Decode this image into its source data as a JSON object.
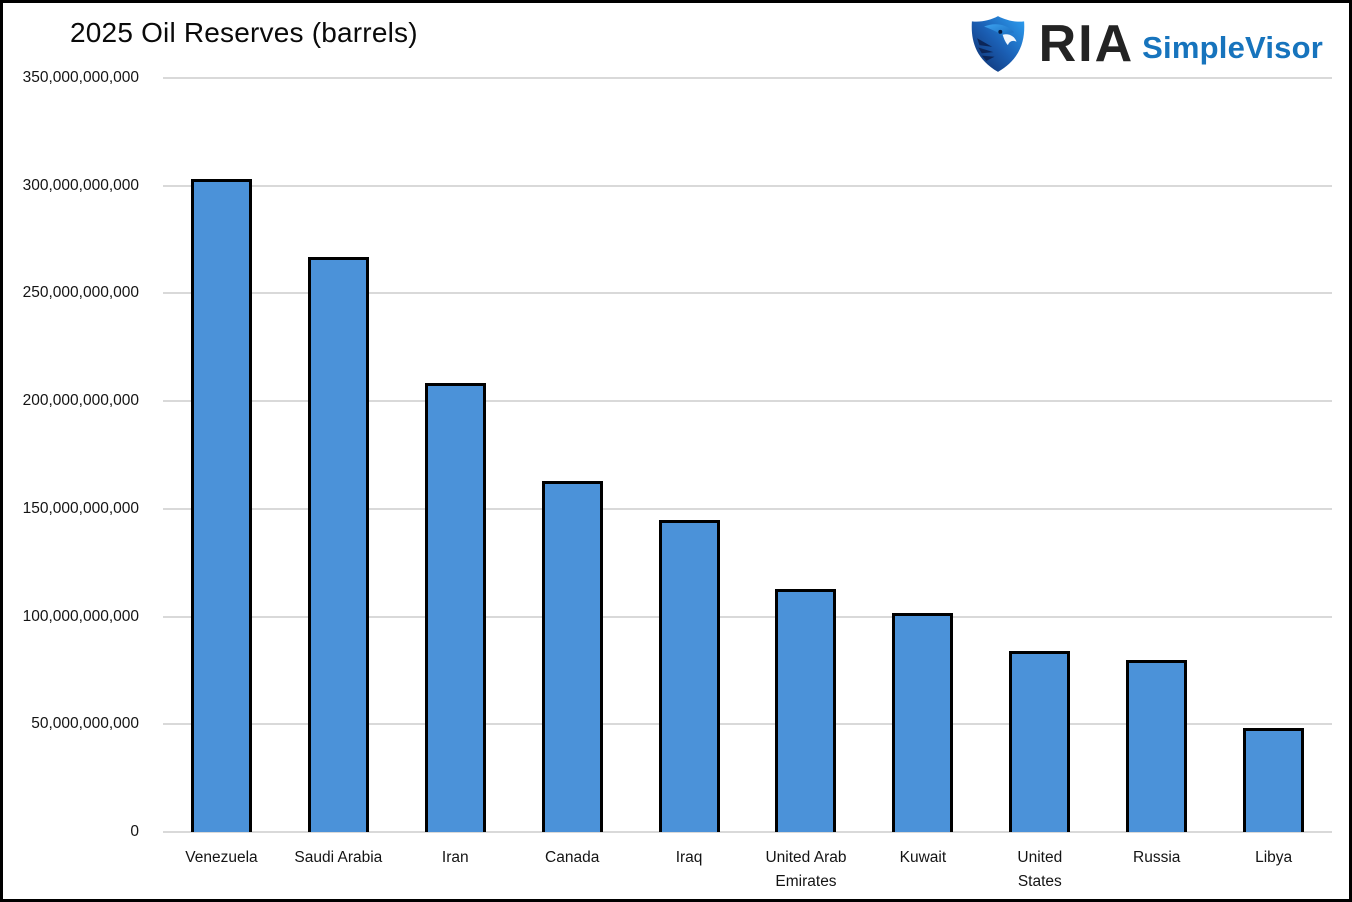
{
  "header": {
    "title": "2025 Oil Reserves (barrels)"
  },
  "logo": {
    "brand": "RIA",
    "product": "SimpleVisor",
    "icon": "ria-eagle-shield-logo",
    "brand_color": "#232323",
    "product_color": "#1774bd",
    "icon_gradient": [
      "#0d2a66",
      "#1b5fb4",
      "#2da0f2"
    ]
  },
  "chart_data": {
    "type": "bar",
    "title": "2025 Oil Reserves (barrels)",
    "categories": [
      "Venezuela",
      "Saudi Arabia",
      "Iran",
      "Canada",
      "Iraq",
      "United Arab Emirates",
      "Kuwait",
      "United States",
      "Russia",
      "Libya"
    ],
    "values": [
      303000000000,
      267000000000,
      208600000000,
      163000000000,
      145000000000,
      113000000000,
      101500000000,
      83800000000,
      80000000000,
      48400000000
    ],
    "xlabel": "",
    "ylabel": "",
    "ylim": [
      0,
      350000000000
    ],
    "ytick_step": 50000000000,
    "ytick_labels": [
      "0",
      "50,000,000,000",
      "100,000,000,000",
      "150,000,000,000",
      "200,000,000,000",
      "250,000,000,000",
      "300,000,000,000",
      "350,000,000,000"
    ],
    "grid": "horizontal",
    "legend": "none",
    "bar_fill_color": "#4b92d9",
    "bar_border_color": "#000000",
    "gridline_color": "#d9d9d9"
  }
}
